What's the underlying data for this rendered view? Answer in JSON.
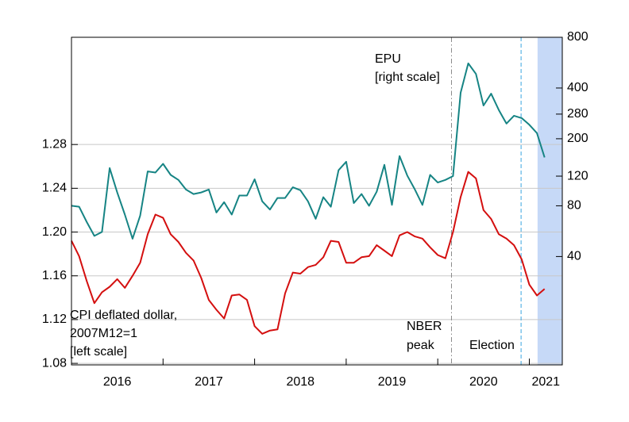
{
  "chart_data": {
    "type": "line",
    "x": [
      2016,
      2016.083,
      2016.167,
      2016.25,
      2016.333,
      2016.417,
      2016.5,
      2016.583,
      2016.667,
      2016.75,
      2016.833,
      2016.917,
      2017,
      2017.083,
      2017.167,
      2017.25,
      2017.333,
      2017.417,
      2017.5,
      2017.583,
      2017.667,
      2017.75,
      2017.833,
      2017.917,
      2018,
      2018.083,
      2018.167,
      2018.25,
      2018.333,
      2018.417,
      2018.5,
      2018.583,
      2018.667,
      2018.75,
      2018.833,
      2018.917,
      2019,
      2019.083,
      2019.167,
      2019.25,
      2019.333,
      2019.417,
      2019.5,
      2019.583,
      2019.667,
      2019.75,
      2019.833,
      2019.917,
      2020,
      2020.083,
      2020.167,
      2020.25,
      2020.333,
      2020.417,
      2020.5,
      2020.583,
      2020.667,
      2020.75,
      2020.833,
      2020.917,
      2021,
      2021.083,
      2021.167
    ],
    "series": [
      {
        "color": "#168484",
        "axis": "y2",
        "values": [
          80,
          79,
          64,
          53,
          56,
          134,
          96,
          71,
          51,
          70,
          128,
          126,
          142,
          122,
          114,
          100,
          94,
          96,
          100,
          73,
          84,
          71,
          92,
          92,
          115,
          85,
          76,
          89,
          89,
          103,
          99,
          85,
          67,
          90,
          79,
          130,
          146,
          83,
          94,
          80,
          97,
          140,
          81,
          158,
          121,
          100,
          81,
          122,
          110,
          114,
          120,
          375,
          560,
          485,
          315,
          370,
          296,
          246,
          274,
          265,
          242,
          216,
          155
        ]
      },
      {
        "color": "#d40f0f",
        "axis": "y",
        "values": [
          1.192,
          1.178,
          1.155,
          1.135,
          1.145,
          1.15,
          1.157,
          1.149,
          1.16,
          1.172,
          1.198,
          1.216,
          1.213,
          1.198,
          1.191,
          1.181,
          1.174,
          1.158,
          1.138,
          1.129,
          1.121,
          1.142,
          1.143,
          1.138,
          1.114,
          1.107,
          1.11,
          1.111,
          1.144,
          1.163,
          1.162,
          1.168,
          1.17,
          1.177,
          1.192,
          1.191,
          1.172,
          1.172,
          1.177,
          1.178,
          1.188,
          1.183,
          1.178,
          1.197,
          1.2,
          1.196,
          1.194,
          1.186,
          1.179,
          1.176,
          1.2,
          1.232,
          1.255,
          1.249,
          1.22,
          1.212,
          1.198,
          1.194,
          1.188,
          1.175,
          1.152,
          1.142,
          1.148
        ]
      }
    ],
    "xlim": [
      2016,
      2021.36
    ],
    "xticks": [
      2016,
      2017,
      2018,
      2019,
      2020,
      2021
    ],
    "ylim": [
      1.0786,
      1.378
    ],
    "yticks": [
      1.08,
      1.12,
      1.16,
      {
        "value": 1.2,
        "label": "1.20"
      },
      1.24,
      1.28
    ],
    "y2lim": [
      9.1,
      800
    ],
    "y2ticks": [
      40,
      80,
      120,
      200,
      280,
      400,
      800
    ],
    "y2_log": true,
    "grid": true,
    "annotations": [
      {
        "text": [
          "EPU",
          "[right scale]"
        ],
        "color": "#168484"
      },
      {
        "text": [
          "CPI deflated dollar,",
          "2007M12=1",
          "[left scale]"
        ],
        "color": "#d40f0f"
      }
    ],
    "vlines": [
      {
        "x": 2020.15,
        "text": [
          "NBER",
          "peak"
        ],
        "color": "#8a8a8a",
        "dash": "dashdot"
      },
      {
        "x": 2020.91,
        "text": [
          "Election"
        ],
        "color": "#3aa6e0",
        "dash": "dash"
      }
    ],
    "shade": {
      "from": 2021.09,
      "to": 2021.36,
      "color": "#c6d9f7"
    }
  }
}
